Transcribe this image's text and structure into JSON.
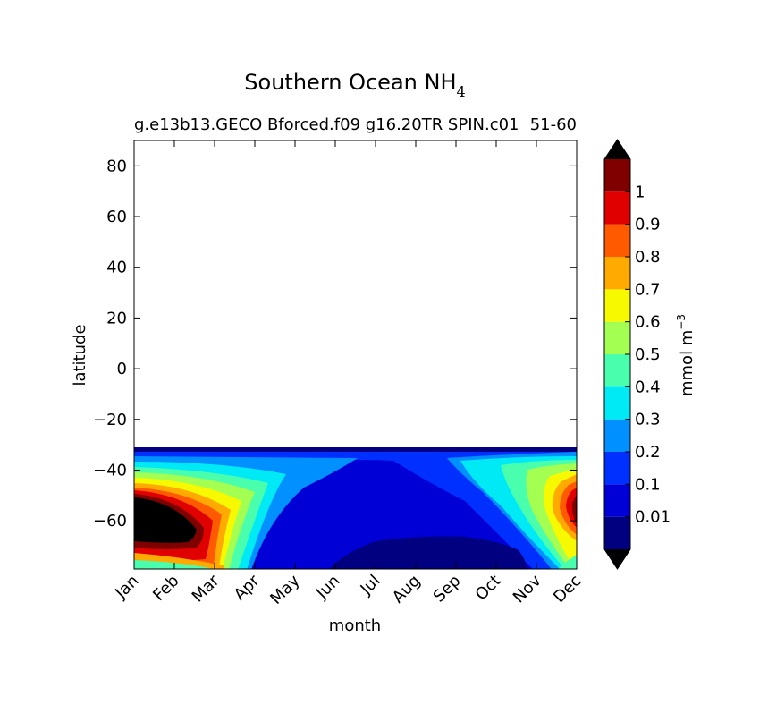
{
  "chart_data": {
    "type": "heatmap",
    "title": "Southern Ocean NH",
    "title_subscript": "4",
    "subtitle_left": "g.e13b13.GECO Bforced.f09 g16.20TR SPIN.c01",
    "subtitle_right": "51-60",
    "xlabel": "month",
    "ylabel": "latitude",
    "x_categories": [
      "Jan",
      "Feb",
      "Mar",
      "Apr",
      "May",
      "Jun",
      "Jul",
      "Aug",
      "Sep",
      "Oct",
      "Nov",
      "Dec"
    ],
    "y_ticks": [
      80,
      60,
      40,
      20,
      0,
      -20,
      -40,
      -60
    ],
    "y_tick_labels": [
      "80",
      "60",
      "40",
      "20",
      "0",
      "−20",
      "−40",
      "−60"
    ],
    "ylim": [
      -79,
      90
    ],
    "data_lat_range": [
      -79,
      -31
    ],
    "colorbar": {
      "label": "mmol m",
      "label_superscript": "−3",
      "levels": [
        0.01,
        0.1,
        0.2,
        0.3,
        0.4,
        0.5,
        0.6,
        0.7,
        0.8,
        0.9,
        1.0
      ],
      "tick_labels": [
        "0.01",
        "0.1",
        "0.2",
        "0.3",
        "0.4",
        "0.5",
        "0.6",
        "0.7",
        "0.8",
        "0.9",
        "1"
      ],
      "extend": "both",
      "under_color": "#000000",
      "over_color": "#000000",
      "colors": [
        "#000080",
        "#0000d6",
        "#0030ff",
        "#0090ff",
        "#00eaf6",
        "#49ffad",
        "#a4ff53",
        "#f6f900",
        "#ffaa00",
        "#ff5a00",
        "#e00000",
        "#800000"
      ]
    },
    "region_summary": [
      {
        "months": "Jan-Mar",
        "lat_range": [
          -70,
          -50
        ],
        "value": "above 1"
      },
      {
        "months": "Jun-Sep",
        "lat_range": [
          -79,
          -65
        ],
        "value": "below 0.01"
      },
      {
        "months": "Oct-Dec",
        "lat_range": [
          -50,
          -35
        ],
        "value": "0.2-0.6"
      }
    ]
  }
}
